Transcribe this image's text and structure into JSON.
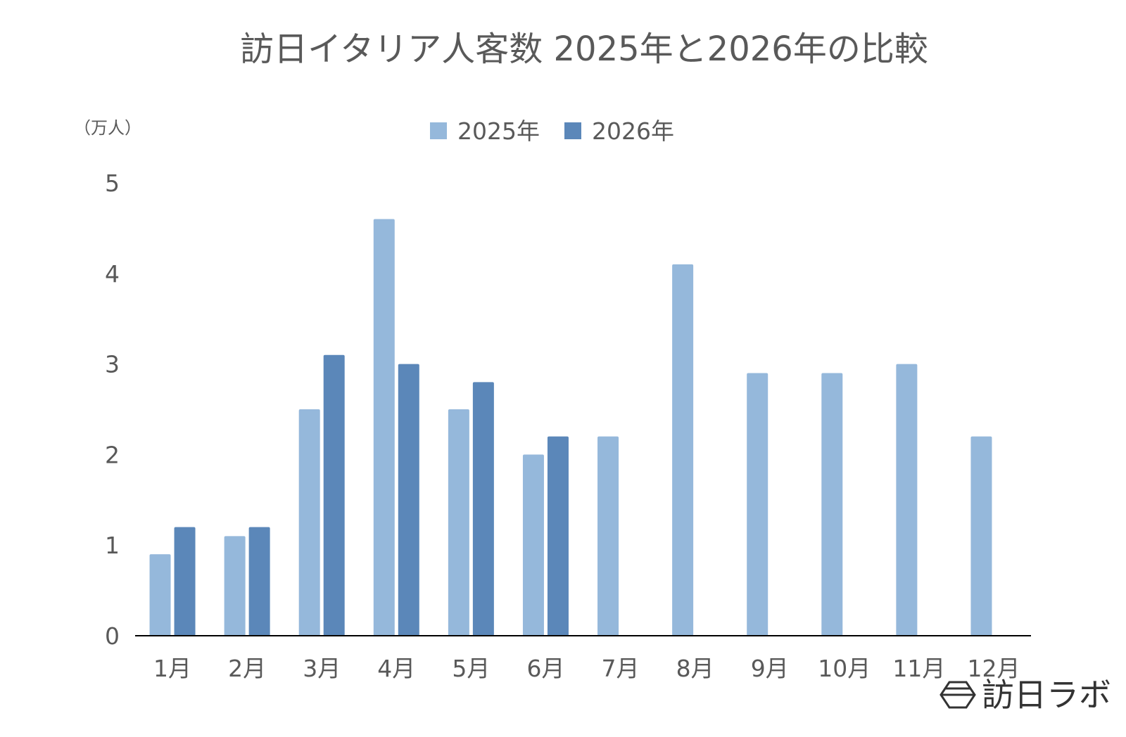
{
  "chart_data": {
    "type": "bar",
    "title": "訪日イタリア人客数 2025年と2026年の比較",
    "unit_label": "（万人）",
    "categories": [
      "1月",
      "2月",
      "3月",
      "4月",
      "5月",
      "6月",
      "7月",
      "8月",
      "9月",
      "10月",
      "11月",
      "12月"
    ],
    "series": [
      {
        "name": "2025年",
        "color": "#95b8db",
        "values": [
          0.9,
          1.1,
          2.5,
          4.6,
          2.5,
          2.0,
          2.2,
          4.1,
          2.9,
          2.9,
          3.0,
          2.2
        ]
      },
      {
        "name": "2026年",
        "color": "#5b87b9",
        "values": [
          1.2,
          1.2,
          3.1,
          3.0,
          2.8,
          2.2,
          null,
          null,
          null,
          null,
          null,
          null
        ]
      }
    ],
    "ylim": [
      0,
      5
    ],
    "yticks": [
      "0",
      "1",
      "2",
      "3",
      "4",
      "5"
    ],
    "grid": false,
    "legend_position": "top-center"
  },
  "logo": {
    "text": "訪日ラボ",
    "icon": "hexagon-logo-icon"
  }
}
